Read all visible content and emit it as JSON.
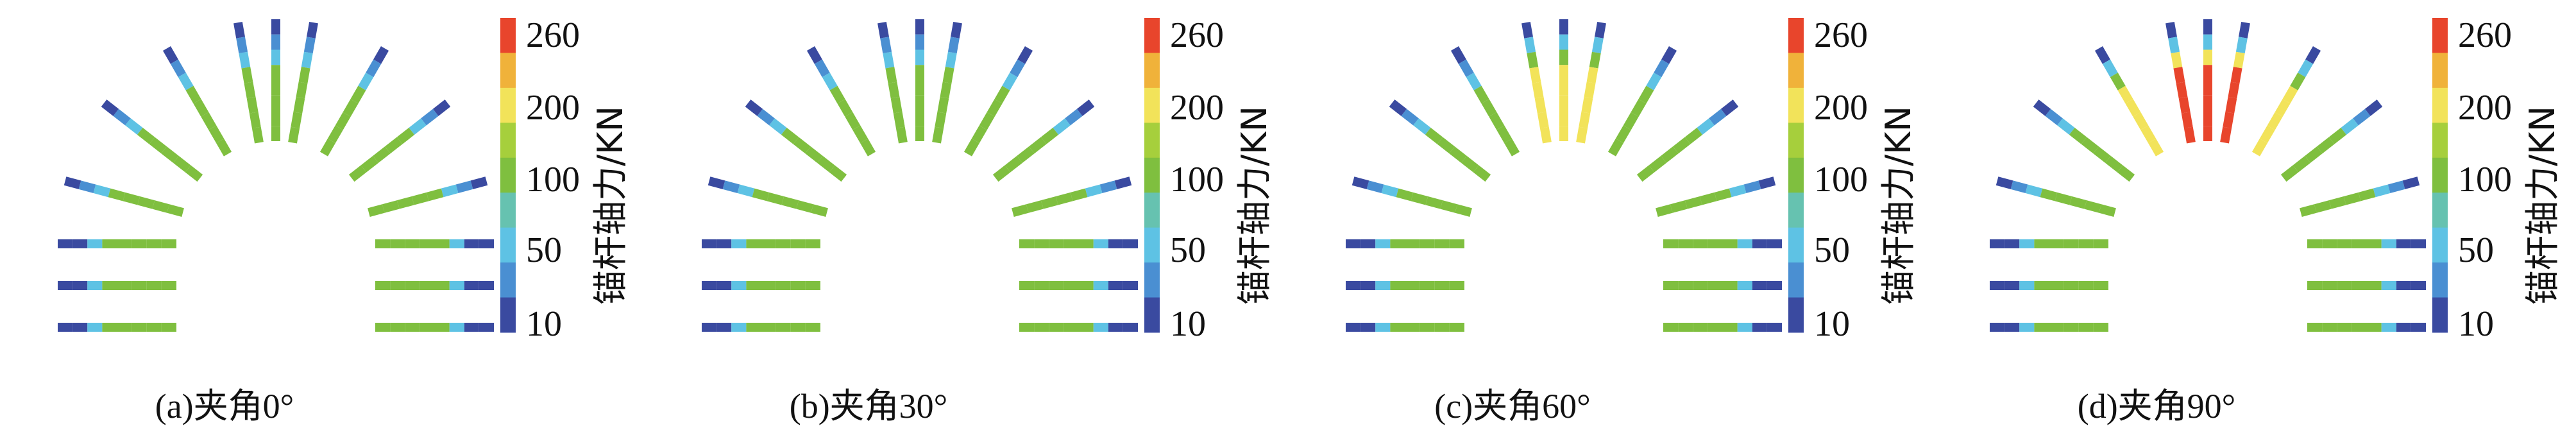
{
  "colorbar": {
    "title": "锚杆轴力/KN",
    "ticks": [
      "260",
      "200",
      "100",
      "50",
      "10"
    ],
    "colors": {
      "c10": "#3a4aa0",
      "c30": "#4a8fd2",
      "c50": "#5ec2e4",
      "c75": "#66c2b0",
      "c100": "#7fbf3f",
      "c150": "#a6cf3c",
      "c200": "#f2e35a",
      "c225": "#f0b23a",
      "c260": "#e8452c"
    }
  },
  "panels": [
    {
      "caption": "(a)夹角0°",
      "angle_deg": 0,
      "arch_level": "mid",
      "crown_level": "mid",
      "wall_level": "mid"
    },
    {
      "caption": "(b)夹角30°",
      "angle_deg": 30,
      "arch_level": "mid",
      "crown_level": "mid",
      "wall_level": "mid"
    },
    {
      "caption": "(c)夹角60°",
      "angle_deg": 60,
      "arch_level": "mid",
      "crown_level": "high",
      "wall_level": "mid"
    },
    {
      "caption": "(d)夹角90°",
      "angle_deg": 90,
      "arch_level": "high",
      "crown_level": "peak",
      "wall_level": "mid"
    }
  ]
}
